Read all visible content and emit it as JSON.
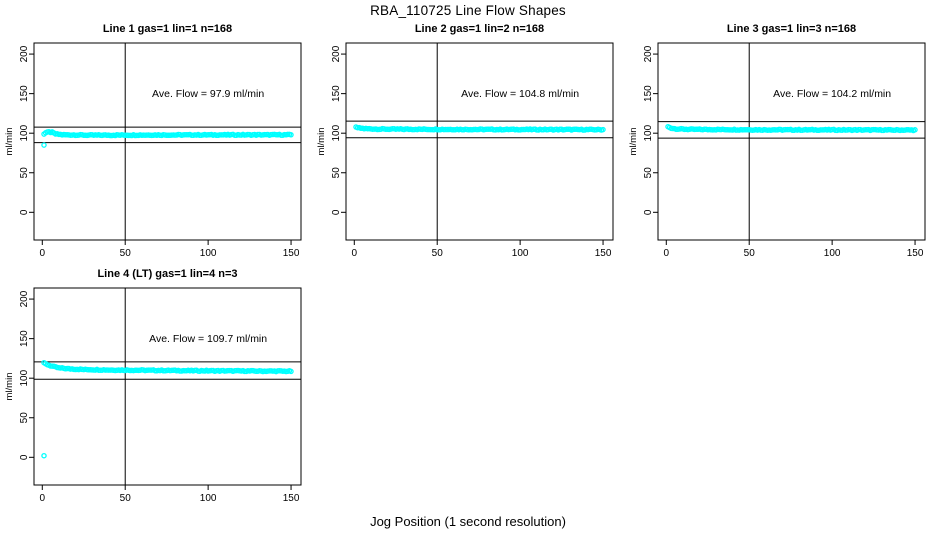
{
  "chart_data": {
    "type": "scatter",
    "title": "RBA_110725  Line Flow Shapes",
    "xlabel": "Jog Position (1 second resolution)",
    "ylabel": "ml/min",
    "x_ticks": [
      0,
      50,
      100,
      150
    ],
    "y_ticks": [
      0,
      50,
      100,
      150,
      200
    ],
    "x_range": [
      -5,
      156
    ],
    "y_range": [
      -35,
      214
    ],
    "grid": false,
    "legend": "none",
    "vline_x": 50,
    "jitter": 0.6,
    "marker": {
      "shape": "open-circle",
      "color": "#00FFFF",
      "radius": 2.1,
      "stroke_width": 1.3
    },
    "axis_color": "#000000",
    "background": "#ffffff",
    "subplots": [
      {
        "title": "Line 1 gas=1 lin=1 n=168",
        "annotation": "Ave. Flow =  97.9  ml/min",
        "annotation_xy": [
          100,
          150
        ],
        "ave_flow": 97.9,
        "ref_lines": [
          107.7,
          88.1
        ],
        "x_start": 1,
        "x_end": 150,
        "series_anchors": [
          [
            1,
            99
          ],
          [
            2,
            100.5
          ],
          [
            4,
            101.5
          ],
          [
            6,
            101
          ],
          [
            8,
            99
          ],
          [
            12,
            98
          ],
          [
            30,
            97.5
          ],
          [
            80,
            97.8
          ],
          [
            150,
            98
          ]
        ],
        "outliers": [
          [
            1,
            85
          ]
        ],
        "seed": 7
      },
      {
        "title": "Line 2 gas=1 lin=2 n=168",
        "annotation": "Ave. Flow =  104.8  ml/min",
        "annotation_xy": [
          100,
          150
        ],
        "ave_flow": 104.8,
        "ref_lines": [
          115.3,
          94.3
        ],
        "x_start": 1,
        "x_end": 150,
        "series_anchors": [
          [
            1,
            107.5
          ],
          [
            3,
            106.5
          ],
          [
            6,
            105.8
          ],
          [
            15,
            105.2
          ],
          [
            60,
            104.8
          ],
          [
            150,
            104.5
          ]
        ],
        "outliers": [],
        "seed": 13
      },
      {
        "title": "Line 3 gas=1 lin=3 n=168",
        "annotation": "Ave. Flow =  104.2  ml/min",
        "annotation_xy": [
          100,
          150
        ],
        "ave_flow": 104.2,
        "ref_lines": [
          114.6,
          93.8
        ],
        "x_start": 1,
        "x_end": 150,
        "series_anchors": [
          [
            1,
            108
          ],
          [
            3,
            106.5
          ],
          [
            6,
            105.5
          ],
          [
            15,
            104.8
          ],
          [
            60,
            104.3
          ],
          [
            150,
            104
          ]
        ],
        "outliers": [],
        "seed": 21
      },
      {
        "title": "Line 4 (LT) gas=1 lin=4 n=3",
        "annotation": "Ave. Flow =  109.7  ml/min",
        "annotation_xy": [
          100,
          150
        ],
        "ave_flow": 109.7,
        "ref_lines": [
          120.7,
          98.7
        ],
        "x_start": 1,
        "x_end": 150,
        "series_anchors": [
          [
            1,
            119
          ],
          [
            2,
            118
          ],
          [
            4,
            116.5
          ],
          [
            7,
            114.5
          ],
          [
            10,
            113
          ],
          [
            15,
            112
          ],
          [
            25,
            111
          ],
          [
            45,
            110.3
          ],
          [
            90,
            109.5
          ],
          [
            150,
            108.8
          ]
        ],
        "outliers": [
          [
            1,
            2
          ]
        ],
        "seed": 29
      }
    ]
  }
}
